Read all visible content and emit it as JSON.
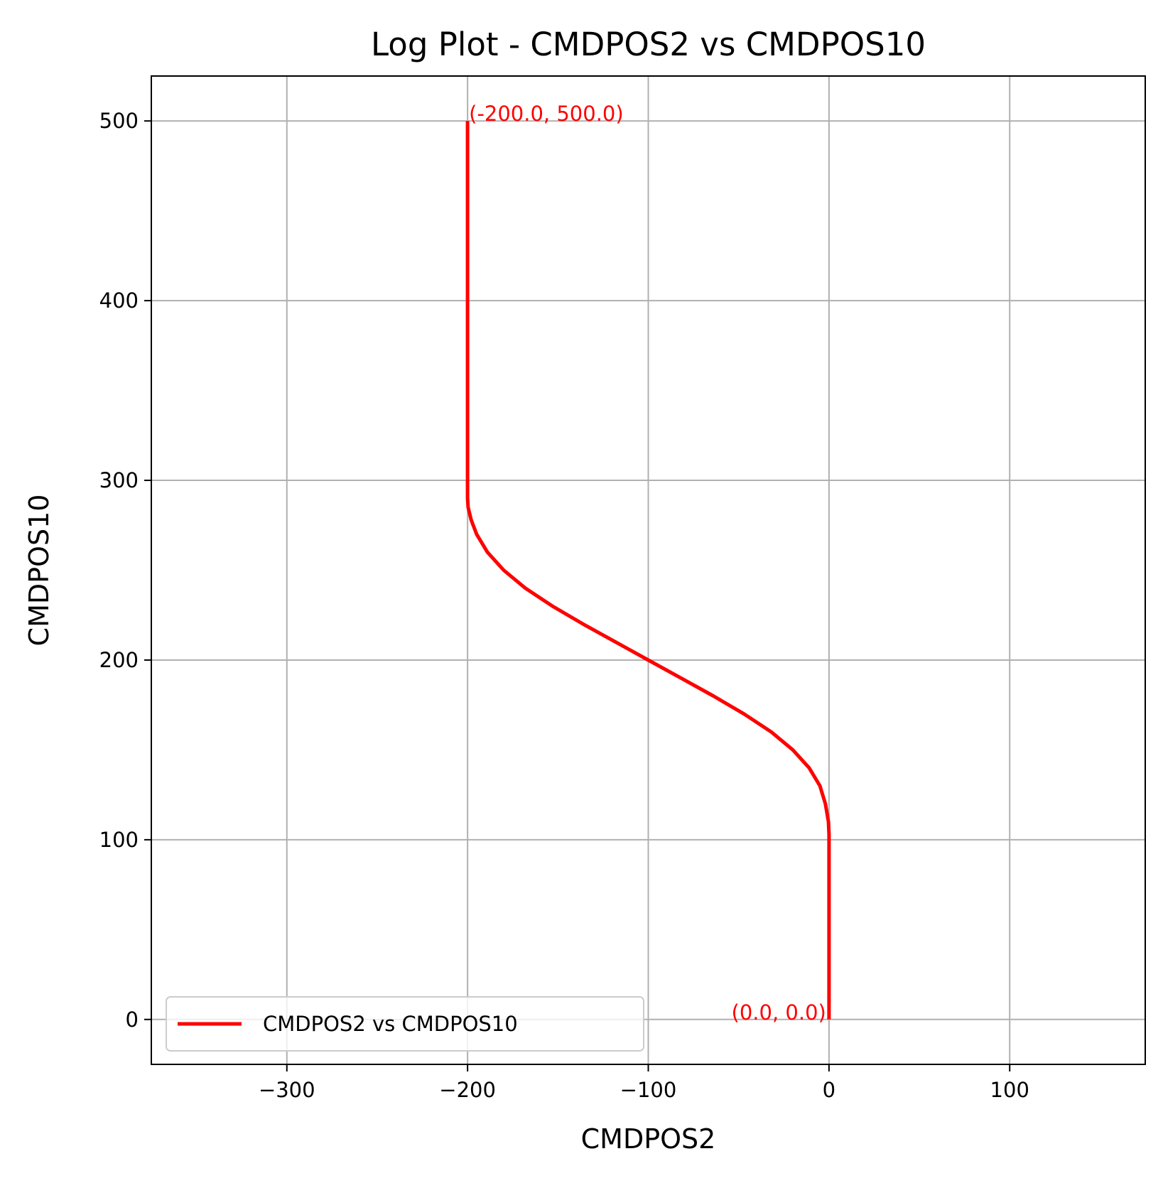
{
  "chart_data": {
    "type": "line",
    "title": "Log Plot - CMDPOS2 vs CMDPOS10",
    "xlabel": "CMDPOS2",
    "ylabel": "CMDPOS10",
    "xlim": [
      -375,
      175
    ],
    "ylim": [
      -25,
      525
    ],
    "xticks": [
      -300,
      -200,
      -100,
      0,
      100
    ],
    "xtick_labels": [
      "−300",
      "−200",
      "−100",
      "0",
      "100"
    ],
    "yticks": [
      0,
      100,
      200,
      300,
      400,
      500
    ],
    "ytick_labels": [
      "0",
      "100",
      "200",
      "300",
      "400",
      "500"
    ],
    "grid": true,
    "legend_position": "lower-left",
    "series": [
      {
        "name": "CMDPOS2 vs CMDPOS10",
        "color": "#ff0000",
        "x": [
          0.0,
          0.0,
          0.0,
          0.0,
          -0.3,
          -2,
          -5,
          -11,
          -20,
          -32,
          -47,
          -64,
          -82,
          -100,
          -118,
          -136,
          -153,
          -168,
          -180,
          -189,
          -195,
          -198,
          -199.7,
          -200.0,
          -200.0,
          -200.0,
          -200.0
        ],
        "y": [
          0,
          50,
          100,
          103,
          110,
          120,
          130,
          140,
          150,
          160,
          170,
          180,
          190,
          200,
          210,
          220,
          230,
          240,
          250,
          260,
          270,
          278,
          285,
          290,
          300,
          400,
          500
        ]
      }
    ],
    "annotations": [
      {
        "text": "(-200.0, 500.0)",
        "x": -200.0,
        "y": 500.0,
        "color": "#ff0000"
      },
      {
        "text": "(0.0, 0.0)",
        "x": 0.0,
        "y": 0.0,
        "color": "#ff0000"
      }
    ]
  },
  "colors": {
    "grid": "#b0b0b0",
    "axis": "#000000",
    "legend_border": "#cccccc"
  }
}
